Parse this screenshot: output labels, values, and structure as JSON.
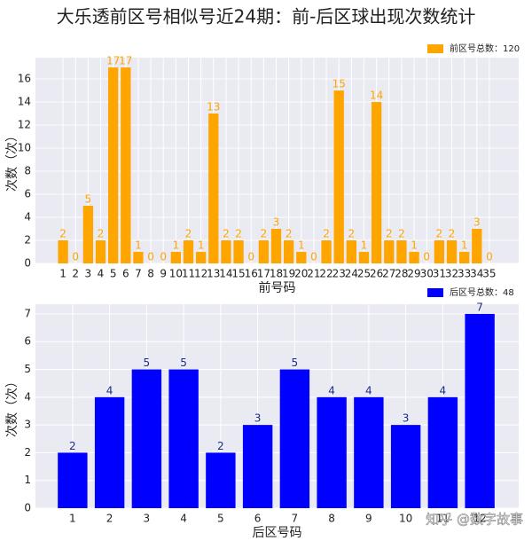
{
  "title": "大乐透前区号相似号近24期：前-后区球出现次数统计",
  "watermark": "知乎 @数字故事",
  "chart_data": [
    {
      "type": "bar",
      "xlabel": "前号码",
      "ylabel": "次数（次）",
      "categories": [
        "1",
        "2",
        "3",
        "4",
        "5",
        "6",
        "7",
        "8",
        "9",
        "10",
        "11",
        "12",
        "13",
        "14",
        "15",
        "16",
        "17",
        "18",
        "19",
        "20",
        "21",
        "22",
        "23",
        "24",
        "25",
        "26",
        "27",
        "28",
        "29",
        "30",
        "31",
        "32",
        "33",
        "34",
        "35"
      ],
      "series": [
        {
          "name": "前区号总数：120",
          "color": "#FFA500",
          "label_color": "#FFA500",
          "values": [
            2,
            0,
            5,
            2,
            17,
            17,
            1,
            0,
            0,
            1,
            2,
            1,
            13,
            2,
            2,
            0,
            2,
            3,
            2,
            1,
            0,
            2,
            15,
            2,
            1,
            14,
            2,
            2,
            1,
            0,
            2,
            2,
            1,
            3,
            0
          ]
        }
      ],
      "ylim": [
        0,
        17.85
      ],
      "yticks": [
        0,
        2,
        4,
        6,
        8,
        10,
        12,
        14,
        16
      ],
      "grid": true,
      "legend": "upper right"
    },
    {
      "type": "bar",
      "xlabel": "后区号码",
      "ylabel": "次数（次）",
      "categories": [
        "1",
        "2",
        "3",
        "4",
        "5",
        "6",
        "7",
        "8",
        "9",
        "10",
        "11",
        "12"
      ],
      "series": [
        {
          "name": "后区号总数：48",
          "color": "#0000FF",
          "label_color": "#1a2a8a",
          "values": [
            2,
            4,
            5,
            5,
            2,
            3,
            5,
            4,
            4,
            3,
            4,
            7
          ]
        }
      ],
      "ylim": [
        0,
        7.35
      ],
      "yticks": [
        0,
        1,
        2,
        3,
        4,
        5,
        6,
        7
      ],
      "grid": true,
      "legend": "upper right"
    }
  ]
}
